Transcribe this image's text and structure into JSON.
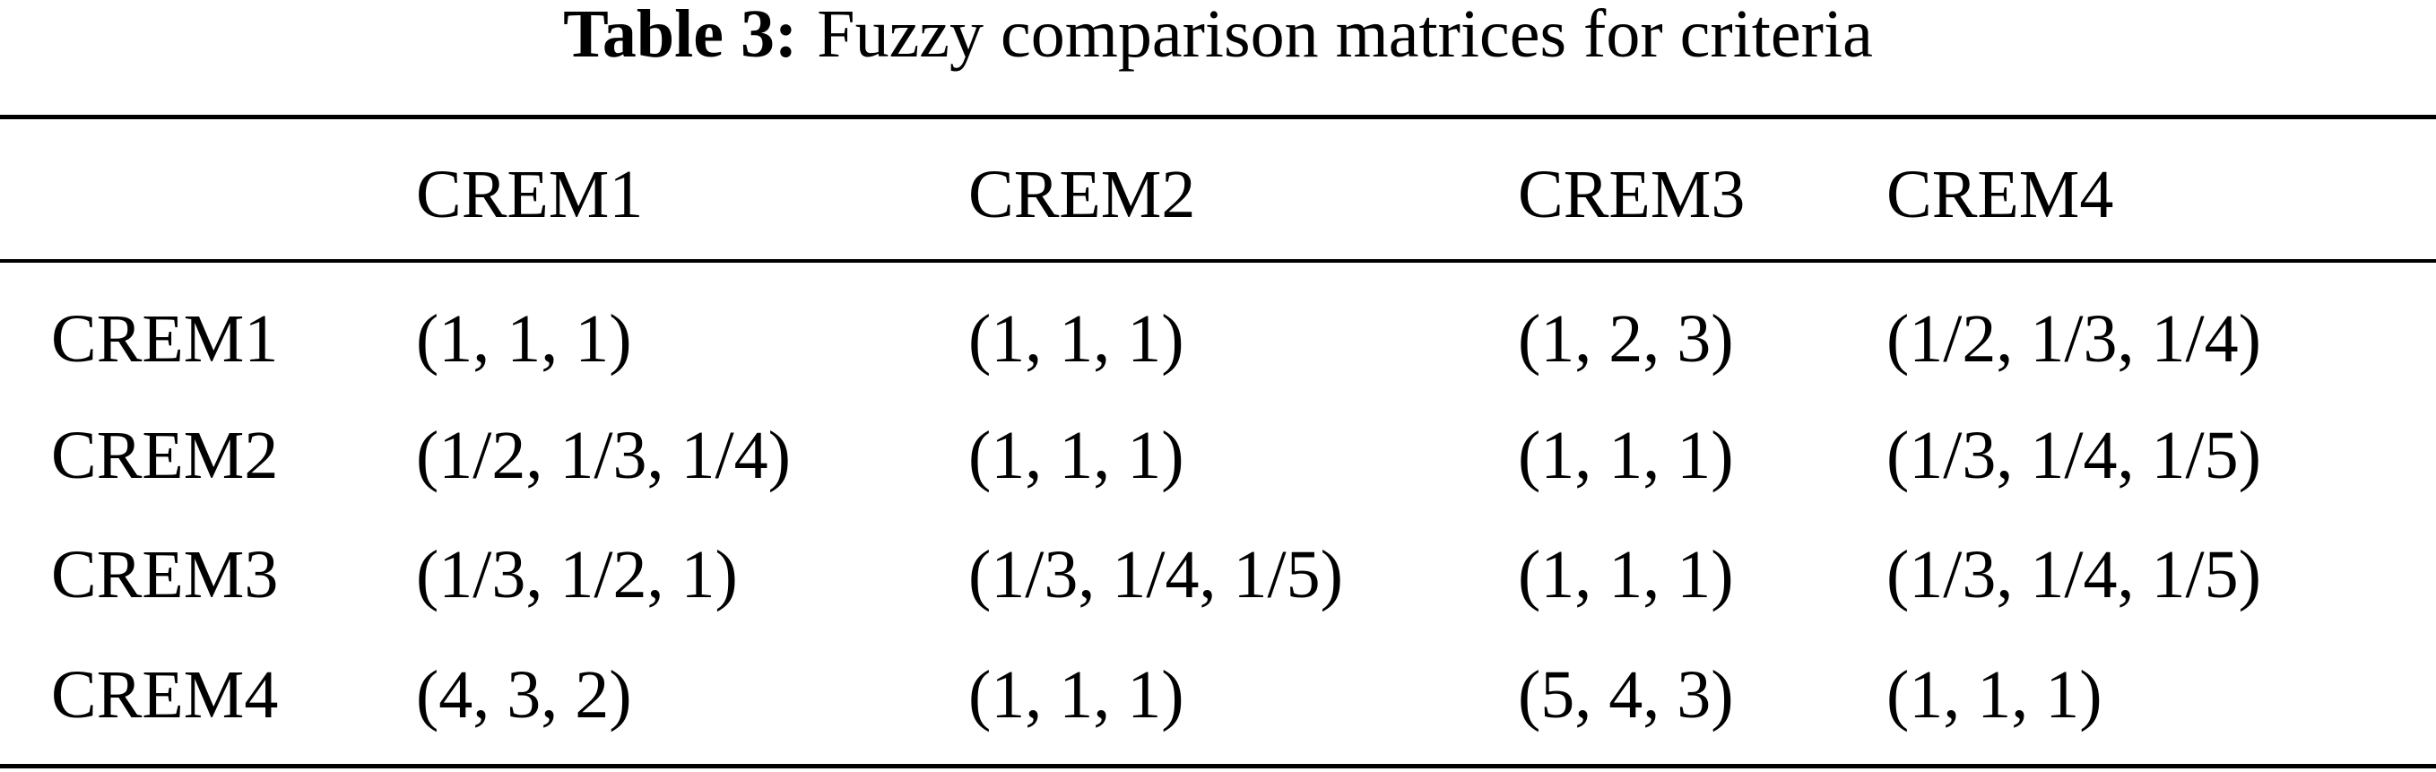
{
  "title": {
    "label": "Table 3:",
    "text": "Fuzzy comparison matrices for criteria"
  },
  "table": {
    "columns": [
      "CREM1",
      "CREM2",
      "CREM3",
      "CREM4"
    ],
    "rows": [
      {
        "label": "CREM1",
        "cells": [
          "(1, 1, 1)",
          "(1, 1, 1)",
          "(1, 2, 3)",
          "(1/2, 1/3, 1/4)"
        ]
      },
      {
        "label": "CREM2",
        "cells": [
          "(1/2, 1/3, 1/4)",
          "(1, 1, 1)",
          "(1, 1, 1)",
          "(1/3, 1/4, 1/5)"
        ]
      },
      {
        "label": "CREM3",
        "cells": [
          "(1/3, 1/2, 1)",
          "(1/3, 1/4, 1/5)",
          "(1, 1, 1)",
          "(1/3, 1/4, 1/5)"
        ]
      },
      {
        "label": "CREM4",
        "cells": [
          "(4, 3, 2)",
          "(1, 1, 1)",
          "(5, 4, 3)",
          "(1, 1, 1)"
        ]
      }
    ]
  }
}
